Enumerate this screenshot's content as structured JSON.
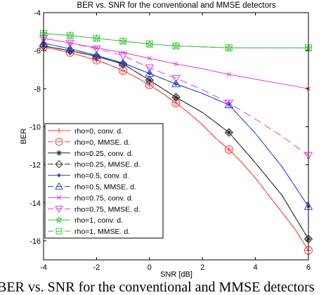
{
  "chart_data": {
    "type": "line",
    "title": "BER vs. SNR for the conventional and MMSE detectors",
    "xlabel": "SNR [dB]",
    "ylabel": "BER",
    "xlim": [
      -4,
      6
    ],
    "ylim": [
      -17,
      -4
    ],
    "xticks": [
      -4,
      -2,
      0,
      2,
      4,
      6
    ],
    "yticks": [
      -4,
      -6,
      -8,
      -10,
      -12,
      -14,
      -16
    ],
    "grid": false,
    "legend_position": "bottom-left",
    "series": [
      {
        "name": "rho=0, conv. d.",
        "color": "#ff3b3b",
        "marker": "plus",
        "dash": "solid",
        "x": [
          -4,
          -3.5,
          -3,
          -2.5,
          -2,
          -1.5,
          -1,
          -0.5,
          0,
          0.5,
          1,
          1.5,
          2,
          2.5,
          3,
          3.5,
          4,
          4.5,
          5,
          5.5,
          6
        ],
        "y": [
          -5.8,
          -5.95,
          -6.1,
          -6.3,
          -6.5,
          -6.75,
          -7.05,
          -7.4,
          -7.8,
          -8.25,
          -8.75,
          -9.3,
          -9.9,
          -10.6,
          -11.2,
          -11.9,
          -12.7,
          -13.6,
          -14.5,
          -15.4,
          -16.5
        ],
        "marker_x": [
          -4,
          -3,
          -2,
          -1,
          0,
          1,
          3,
          6
        ]
      },
      {
        "name": "rho=0, MMSE. d.",
        "color": "#ff3b3b",
        "marker": "circle",
        "dash": "dashed",
        "x": [
          -4,
          -3.5,
          -3,
          -2.5,
          -2,
          -1.5,
          -1,
          -0.5,
          0,
          0.5,
          1,
          1.5,
          2,
          2.5,
          3,
          3.5,
          4,
          4.5,
          5,
          5.5,
          6
        ],
        "y": [
          -5.8,
          -5.95,
          -6.1,
          -6.3,
          -6.5,
          -6.75,
          -7.05,
          -7.4,
          -7.8,
          -8.25,
          -8.75,
          -9.3,
          -9.9,
          -10.6,
          -11.2,
          -11.9,
          -12.7,
          -13.6,
          -14.5,
          -15.4,
          -16.5
        ],
        "marker_x": [
          -4,
          -3,
          -2,
          -1,
          0,
          1,
          3,
          6
        ]
      },
      {
        "name": "rho=0.25, conv. d.",
        "color": "#222222",
        "marker": "asterisk",
        "dash": "solid",
        "x": [
          -4,
          -3,
          -2,
          -1,
          0,
          1,
          2,
          3,
          4,
          5,
          6
        ],
        "y": [
          -5.75,
          -6.0,
          -6.3,
          -6.7,
          -7.55,
          -8.45,
          -9.25,
          -10.3,
          -11.9,
          -13.6,
          -15.9
        ],
        "marker_x": [
          -4,
          -3,
          -2,
          -1,
          0,
          1,
          3,
          6
        ]
      },
      {
        "name": "rho=0.25, MMSE. d.",
        "color": "#222222",
        "marker": "diamond",
        "dash": "dashed",
        "x": [
          -4,
          -3,
          -2,
          -1,
          0,
          1,
          2,
          3,
          4,
          5,
          6
        ],
        "y": [
          -5.75,
          -6.0,
          -6.3,
          -6.7,
          -7.55,
          -8.45,
          -9.25,
          -10.3,
          -11.9,
          -13.6,
          -15.9
        ],
        "marker_x": [
          -4,
          -3,
          -2,
          -1,
          0,
          1,
          3,
          6
        ]
      },
      {
        "name": "rho=0.5, conv. d.",
        "color": "#2a45d6",
        "marker": "dot",
        "dash": "solid",
        "x": [
          -4,
          -3,
          -2,
          -1,
          0,
          1,
          2,
          3,
          4,
          5,
          6
        ],
        "y": [
          -5.6,
          -5.9,
          -6.25,
          -6.65,
          -7.2,
          -7.75,
          -8.25,
          -8.85,
          -10.35,
          -12.1,
          -14.2
        ],
        "marker_x": [
          -4,
          -3,
          -2,
          -1,
          0,
          1,
          3,
          6
        ]
      },
      {
        "name": "rho=0.5, MMSE. d.",
        "color": "#2a45d6",
        "marker": "triangle",
        "dash": "dashed",
        "x": [
          -4,
          -3,
          -2,
          -1,
          0,
          1,
          2,
          3,
          4,
          5,
          6
        ],
        "y": [
          -5.6,
          -5.9,
          -6.25,
          -6.65,
          -7.2,
          -7.75,
          -8.25,
          -8.85,
          -10.35,
          -12.1,
          -14.2
        ],
        "marker_x": [
          -4,
          -3,
          -2,
          -1,
          0,
          1,
          3,
          6
        ]
      },
      {
        "name": "rho=0.75, conv. d.",
        "color": "#e23ae2",
        "marker": "x",
        "dash": "solid",
        "x": [
          -4,
          -3,
          -2,
          -1,
          0,
          1,
          2,
          3,
          4,
          5,
          6
        ],
        "y": [
          -5.35,
          -5.6,
          -5.85,
          -6.1,
          -6.4,
          -6.7,
          -6.95,
          -7.25,
          -7.5,
          -7.75,
          -8.0
        ],
        "marker_x": [
          -4,
          -3,
          -2,
          -1,
          0,
          1,
          3,
          6
        ]
      },
      {
        "name": "rho=0.75, MMSE. d.",
        "color": "#e23ae2",
        "marker": "triangle-down",
        "dash": "dashed",
        "x": [
          -4,
          -3,
          -2,
          -1,
          0,
          1,
          2,
          3,
          4,
          5,
          6
        ],
        "y": [
          -5.35,
          -5.6,
          -5.9,
          -6.25,
          -6.9,
          -7.45,
          -8.05,
          -8.75,
          -9.6,
          -10.5,
          -11.5
        ],
        "marker_x": [
          -4,
          -3,
          -2,
          -1,
          0,
          1,
          3,
          6
        ]
      },
      {
        "name": "rho=1, conv. d.",
        "color": "#3fc23f",
        "marker": "star",
        "dash": "solid",
        "x": [
          -4,
          -3,
          -2,
          -1,
          0,
          1,
          2,
          3,
          4,
          5,
          6
        ],
        "y": [
          -5.1,
          -5.2,
          -5.35,
          -5.5,
          -5.65,
          -5.75,
          -5.8,
          -5.85,
          -5.85,
          -5.85,
          -5.85
        ],
        "marker_x": [
          -4,
          -3,
          -2,
          -1,
          0,
          1,
          3,
          6
        ]
      },
      {
        "name": "rho=1, MMSE. d.",
        "color": "#3fc23f",
        "marker": "square",
        "dash": "dashed",
        "x": [
          -4,
          -3,
          -2,
          -1,
          0,
          1,
          2,
          3,
          4,
          5,
          6
        ],
        "y": [
          -5.1,
          -5.2,
          -5.35,
          -5.5,
          -5.65,
          -5.75,
          -5.8,
          -5.85,
          -5.85,
          -5.85,
          -5.85
        ],
        "marker_x": [
          -4,
          -3,
          -2,
          -1,
          0,
          1,
          3,
          6
        ]
      }
    ]
  },
  "caption": "BER vs. SNR for the conventional and MMSE detectors"
}
